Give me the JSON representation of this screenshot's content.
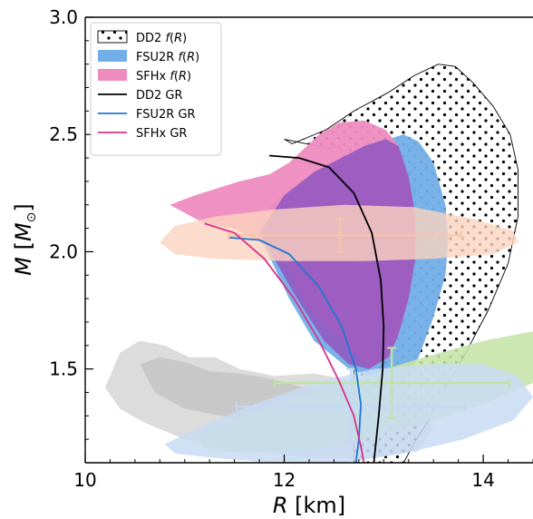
{
  "chart_data": {
    "type": "line",
    "xlabel": "R [km]",
    "ylabel": "M [M⊙]",
    "xlim": [
      10,
      14.5
    ],
    "ylim": [
      1.1,
      3.0
    ],
    "xticks": [
      10,
      12,
      14
    ],
    "yticks": [
      1.5,
      2.0,
      2.5,
      3.0
    ],
    "xtick_labels": [
      "10",
      "12",
      "14"
    ],
    "ytick_labels": [
      "1.5",
      "2.0",
      "2.5",
      "3.0"
    ],
    "legend_position": "top-left",
    "legend": [
      {
        "label": "DD2 f(R)",
        "kind": "hatch"
      },
      {
        "label": "FSU2R f(R)",
        "kind": "fill",
        "color": "#72aee8"
      },
      {
        "label": "SFHx f(R)",
        "kind": "fill",
        "color": "#ee8bbf"
      },
      {
        "label": "DD2 GR",
        "kind": "line",
        "color": "#000000"
      },
      {
        "label": "FSU2R GR",
        "kind": "line",
        "color": "#1f77d0"
      },
      {
        "label": "SFHx GR",
        "kind": "line",
        "color": "#d6338a"
      }
    ],
    "series": [
      {
        "name": "DD2 GR",
        "color": "#000000",
        "points": [
          [
            11.85,
            2.41
          ],
          [
            12.15,
            2.4
          ],
          [
            12.45,
            2.36
          ],
          [
            12.7,
            2.25
          ],
          [
            12.88,
            2.08
          ],
          [
            12.97,
            1.88
          ],
          [
            13.0,
            1.68
          ],
          [
            12.99,
            1.5
          ],
          [
            12.95,
            1.3
          ],
          [
            12.9,
            1.1
          ]
        ]
      },
      {
        "name": "FSU2R GR",
        "color": "#1f77d0",
        "points": [
          [
            11.45,
            2.06
          ],
          [
            11.75,
            2.05
          ],
          [
            12.05,
            1.99
          ],
          [
            12.35,
            1.85
          ],
          [
            12.58,
            1.68
          ],
          [
            12.72,
            1.5
          ],
          [
            12.77,
            1.35
          ],
          [
            12.75,
            1.2
          ],
          [
            12.72,
            1.1
          ]
        ]
      },
      {
        "name": "SFHx GR",
        "color": "#d6338a",
        "points": [
          [
            11.2,
            2.12
          ],
          [
            11.5,
            2.08
          ],
          [
            11.8,
            1.97
          ],
          [
            12.1,
            1.8
          ],
          [
            12.35,
            1.62
          ],
          [
            12.55,
            1.45
          ],
          [
            12.7,
            1.3
          ],
          [
            12.78,
            1.15
          ],
          [
            12.8,
            1.1
          ]
        ]
      }
    ],
    "regions": [
      {
        "name": "DD2 f(R)",
        "style": "hatch",
        "edge": "#000000",
        "points": [
          [
            12.42,
            2.52
          ],
          [
            12.7,
            2.6
          ],
          [
            13.05,
            2.68
          ],
          [
            13.3,
            2.75
          ],
          [
            13.55,
            2.8
          ],
          [
            13.72,
            2.79
          ],
          [
            13.9,
            2.72
          ],
          [
            14.1,
            2.62
          ],
          [
            14.27,
            2.5
          ],
          [
            14.35,
            2.35
          ],
          [
            14.35,
            2.15
          ],
          [
            14.25,
            1.95
          ],
          [
            14.05,
            1.75
          ],
          [
            13.8,
            1.55
          ],
          [
            13.6,
            1.4
          ],
          [
            13.45,
            1.28
          ],
          [
            13.3,
            1.18
          ],
          [
            13.2,
            1.1
          ],
          [
            13.05,
            1.1
          ],
          [
            12.7,
            1.1
          ],
          [
            12.7,
            2.3
          ],
          [
            12.55,
            2.45
          ],
          [
            12.45,
            2.44
          ],
          [
            12.0,
            2.48
          ],
          [
            12.08,
            2.46
          ],
          [
            12.42,
            2.52
          ]
        ]
      },
      {
        "name": "FSU2R f(R)",
        "style": "fill",
        "color": "#72aee8",
        "opacity": 0.95,
        "points": [
          [
            12.3,
            2.34
          ],
          [
            12.8,
            2.45
          ],
          [
            13.2,
            2.5
          ],
          [
            13.35,
            2.47
          ],
          [
            13.5,
            2.38
          ],
          [
            13.62,
            2.2
          ],
          [
            13.65,
            2.05
          ],
          [
            13.62,
            1.9
          ],
          [
            13.5,
            1.72
          ],
          [
            13.35,
            1.55
          ],
          [
            13.2,
            1.45
          ],
          [
            13.0,
            1.45
          ],
          [
            12.65,
            1.5
          ],
          [
            12.3,
            1.62
          ],
          [
            12.05,
            1.8
          ],
          [
            11.85,
            1.98
          ],
          [
            11.7,
            2.12
          ],
          [
            12.0,
            2.25
          ],
          [
            12.3,
            2.34
          ]
        ]
      },
      {
        "name": "SFHx f(R)",
        "style": "fill",
        "color": "#ee8bbf",
        "opacity": 0.95,
        "points": [
          [
            10.85,
            2.2
          ],
          [
            11.1,
            2.24
          ],
          [
            11.55,
            2.3
          ],
          [
            11.85,
            2.33
          ],
          [
            12.05,
            2.38
          ],
          [
            12.35,
            2.5
          ],
          [
            12.55,
            2.55
          ],
          [
            12.8,
            2.56
          ],
          [
            13.02,
            2.52
          ],
          [
            13.15,
            2.45
          ],
          [
            13.25,
            2.32
          ],
          [
            13.32,
            2.15
          ],
          [
            13.32,
            1.98
          ],
          [
            13.25,
            1.8
          ],
          [
            13.15,
            1.65
          ],
          [
            13.05,
            1.55
          ],
          [
            12.85,
            1.5
          ],
          [
            12.75,
            1.55
          ],
          [
            12.6,
            1.62
          ],
          [
            12.42,
            1.68
          ],
          [
            12.25,
            1.76
          ],
          [
            12.05,
            1.92
          ],
          [
            11.8,
            2.03
          ],
          [
            11.5,
            2.1
          ],
          [
            11.2,
            2.12
          ],
          [
            10.85,
            2.2
          ]
        ]
      },
      {
        "name": "Purple overlap",
        "style": "fill",
        "color": "#9257c0",
        "opacity": 0.88,
        "points": [
          [
            12.3,
            2.34
          ],
          [
            12.8,
            2.45
          ],
          [
            13.02,
            2.48
          ],
          [
            13.15,
            2.45
          ],
          [
            13.25,
            2.32
          ],
          [
            13.32,
            2.15
          ],
          [
            13.32,
            1.98
          ],
          [
            13.25,
            1.8
          ],
          [
            13.15,
            1.65
          ],
          [
            13.05,
            1.55
          ],
          [
            12.85,
            1.5
          ],
          [
            12.65,
            1.52
          ],
          [
            12.4,
            1.62
          ],
          [
            12.1,
            1.82
          ],
          [
            11.9,
            1.97
          ],
          [
            11.75,
            2.08
          ],
          [
            12.0,
            2.24
          ],
          [
            12.3,
            2.34
          ]
        ]
      },
      {
        "name": "Gray outer",
        "style": "fill",
        "color": "#dcdcdc",
        "opacity": 1,
        "points": [
          [
            10.2,
            1.42
          ],
          [
            10.35,
            1.57
          ],
          [
            10.55,
            1.62
          ],
          [
            10.8,
            1.6
          ],
          [
            11.05,
            1.55
          ],
          [
            11.3,
            1.55
          ],
          [
            11.55,
            1.5
          ],
          [
            11.9,
            1.47
          ],
          [
            12.3,
            1.48
          ],
          [
            12.7,
            1.45
          ],
          [
            13.1,
            1.42
          ],
          [
            13.4,
            1.36
          ],
          [
            13.5,
            1.25
          ],
          [
            13.35,
            1.15
          ],
          [
            12.9,
            1.12
          ],
          [
            12.3,
            1.12
          ],
          [
            11.6,
            1.15
          ],
          [
            11.0,
            1.2
          ],
          [
            10.6,
            1.27
          ],
          [
            10.35,
            1.33
          ],
          [
            10.2,
            1.42
          ]
        ]
      },
      {
        "name": "Gray inner",
        "style": "fill",
        "color": "#c8c8c8",
        "opacity": 1,
        "points": [
          [
            10.55,
            1.52
          ],
          [
            10.75,
            1.55
          ],
          [
            11.0,
            1.53
          ],
          [
            11.25,
            1.49
          ],
          [
            11.55,
            1.48
          ],
          [
            11.85,
            1.46
          ],
          [
            12.2,
            1.42
          ],
          [
            12.5,
            1.4
          ],
          [
            12.6,
            1.33
          ],
          [
            12.4,
            1.27
          ],
          [
            12.0,
            1.26
          ],
          [
            11.5,
            1.29
          ],
          [
            11.0,
            1.33
          ],
          [
            10.7,
            1.4
          ],
          [
            10.55,
            1.52
          ]
        ]
      },
      {
        "name": "Green",
        "style": "fill",
        "color": "#c6e4a8",
        "opacity": 0.88,
        "points": [
          [
            11.1,
            1.22
          ],
          [
            11.6,
            1.3
          ],
          [
            12.2,
            1.39
          ],
          [
            12.8,
            1.47
          ],
          [
            13.4,
            1.55
          ],
          [
            14.0,
            1.62
          ],
          [
            14.5,
            1.66
          ],
          [
            14.5,
            1.44
          ],
          [
            14.0,
            1.35
          ],
          [
            13.4,
            1.27
          ],
          [
            12.8,
            1.2
          ],
          [
            12.2,
            1.15
          ],
          [
            11.6,
            1.14
          ],
          [
            11.2,
            1.16
          ],
          [
            11.1,
            1.22
          ]
        ]
      },
      {
        "name": "Light blue",
        "style": "fill",
        "color": "#c8dcf4",
        "opacity": 0.85,
        "points": [
          [
            10.8,
            1.18
          ],
          [
            11.2,
            1.26
          ],
          [
            11.7,
            1.35
          ],
          [
            12.3,
            1.44
          ],
          [
            12.9,
            1.5
          ],
          [
            13.5,
            1.52
          ],
          [
            14.0,
            1.52
          ],
          [
            14.35,
            1.47
          ],
          [
            14.5,
            1.38
          ],
          [
            14.3,
            1.28
          ],
          [
            13.8,
            1.2
          ],
          [
            13.2,
            1.14
          ],
          [
            12.6,
            1.1
          ],
          [
            11.9,
            1.1
          ],
          [
            11.3,
            1.12
          ],
          [
            10.9,
            1.14
          ],
          [
            10.8,
            1.18
          ]
        ]
      },
      {
        "name": "Peach",
        "style": "fill",
        "color": "#fbd3bf",
        "opacity": 0.8,
        "points": [
          [
            10.75,
            2.04
          ],
          [
            10.9,
            2.11
          ],
          [
            11.3,
            2.15
          ],
          [
            11.9,
            2.18
          ],
          [
            12.6,
            2.2
          ],
          [
            13.3,
            2.19
          ],
          [
            13.9,
            2.14
          ],
          [
            14.3,
            2.09
          ],
          [
            14.35,
            2.04
          ],
          [
            14.1,
            1.99
          ],
          [
            13.5,
            1.97
          ],
          [
            12.8,
            1.96
          ],
          [
            12.0,
            1.96
          ],
          [
            11.3,
            1.97
          ],
          [
            10.9,
            1.99
          ],
          [
            10.75,
            2.04
          ]
        ]
      }
    ],
    "error_bars": [
      {
        "name": "Peach measurement",
        "x": 12.56,
        "y": 2.07,
        "xerr": [
          1.12,
          1.22
        ],
        "yerr": [
          0.07,
          0.07
        ],
        "color": "#f7c6a6"
      },
      {
        "name": "Green measurement",
        "x": 13.08,
        "y": 1.44,
        "xerr": [
          1.18,
          1.18
        ],
        "yerr": [
          0.15,
          0.15
        ],
        "color": "#bfe2a4"
      },
      {
        "name": "Light blue measurement",
        "x": 12.67,
        "y": 1.34,
        "xerr": [
          1.15,
          1.15
        ],
        "yerr": [
          0.16,
          0.16
        ],
        "color": "#c6d8f2"
      }
    ]
  }
}
